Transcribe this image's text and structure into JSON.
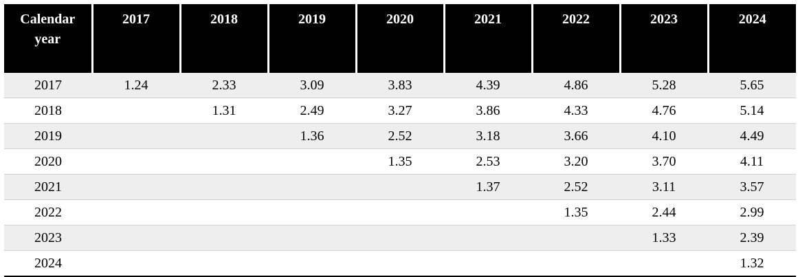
{
  "table": {
    "header_label": "Calendar year",
    "columns": [
      "2017",
      "2018",
      "2019",
      "2020",
      "2021",
      "2022",
      "2023",
      "2024"
    ],
    "rows": [
      {
        "year": "2017",
        "values": [
          "1.24",
          "2.33",
          "3.09",
          "3.83",
          "4.39",
          "4.86",
          "5.28",
          "5.65"
        ]
      },
      {
        "year": "2018",
        "values": [
          "",
          "1.31",
          "2.49",
          "3.27",
          "3.86",
          "4.33",
          "4.76",
          "5.14"
        ]
      },
      {
        "year": "2019",
        "values": [
          "",
          "",
          "1.36",
          "2.52",
          "3.18",
          "3.66",
          "4.10",
          "4.49"
        ]
      },
      {
        "year": "2020",
        "values": [
          "",
          "",
          "",
          "1.35",
          "2.53",
          "3.20",
          "3.70",
          "4.11"
        ]
      },
      {
        "year": "2021",
        "values": [
          "",
          "",
          "",
          "",
          "1.37",
          "2.52",
          "3.11",
          "3.57"
        ]
      },
      {
        "year": "2022",
        "values": [
          "",
          "",
          "",
          "",
          "",
          "1.35",
          "2.44",
          "2.99"
        ]
      },
      {
        "year": "2023",
        "values": [
          "",
          "",
          "",
          "",
          "",
          "",
          "1.33",
          "2.39"
        ]
      },
      {
        "year": "2024",
        "values": [
          "",
          "",
          "",
          "",
          "",
          "",
          "",
          "1.32"
        ]
      }
    ]
  }
}
